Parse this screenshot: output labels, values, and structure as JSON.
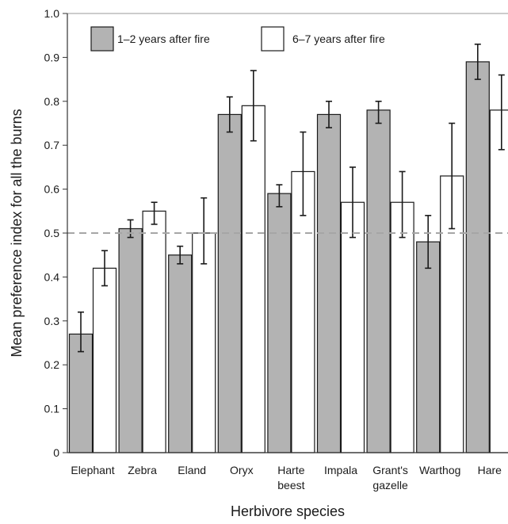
{
  "chart_data": {
    "type": "bar",
    "xlabel": "Herbivore species",
    "ylabel": "Mean preference index for all the burns",
    "ylim": [
      0,
      1.0
    ],
    "yticks": [
      "0",
      "0.1",
      "0.2",
      "0.3",
      "0.4",
      "0.5",
      "0.6",
      "0.7",
      "0.8",
      "0.9",
      "1.0"
    ],
    "reference_line": 0.5,
    "legend_position": "top",
    "categories": [
      [
        "Elephant"
      ],
      [
        "Zebra"
      ],
      [
        "Eland"
      ],
      [
        "Oryx"
      ],
      [
        "Harte",
        "beest"
      ],
      [
        "Impala"
      ],
      [
        "Grant's",
        "gazelle"
      ],
      [
        "Warthog"
      ],
      [
        "Hare"
      ]
    ],
    "series": [
      {
        "name": "1–2 years after fire",
        "color": "#b3b3b3",
        "values": [
          0.27,
          0.51,
          0.45,
          0.77,
          0.59,
          0.77,
          0.78,
          0.48,
          0.89
        ],
        "err_low": [
          0.23,
          0.49,
          0.43,
          0.73,
          0.56,
          0.74,
          0.75,
          0.42,
          0.85
        ],
        "err_high": [
          0.32,
          0.53,
          0.47,
          0.81,
          0.61,
          0.8,
          0.8,
          0.54,
          0.93
        ]
      },
      {
        "name": "6–7 years after fire",
        "color": "#ffffff",
        "values": [
          0.42,
          0.55,
          0.5,
          0.79,
          0.64,
          0.57,
          0.57,
          0.63,
          0.78
        ],
        "err_low": [
          0.38,
          0.52,
          0.43,
          0.71,
          0.54,
          0.49,
          0.49,
          0.51,
          0.69
        ],
        "err_high": [
          0.46,
          0.57,
          0.58,
          0.87,
          0.73,
          0.65,
          0.64,
          0.75,
          0.86
        ]
      }
    ]
  }
}
